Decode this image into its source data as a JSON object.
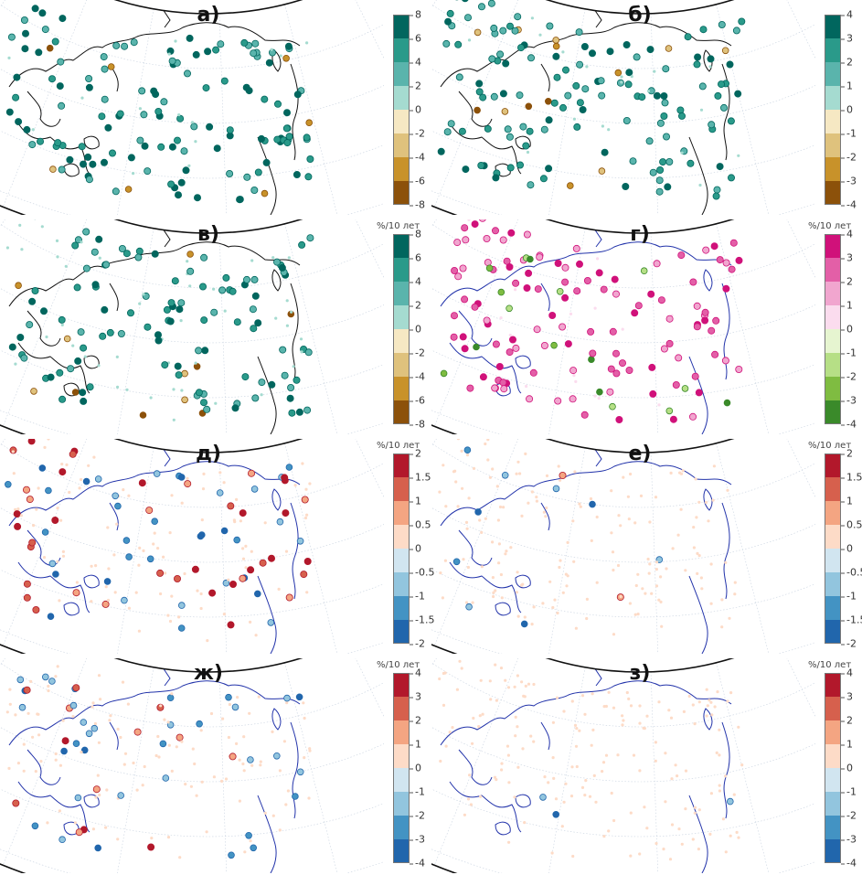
{
  "unit_label": "%/10 лет",
  "panels": [
    {
      "id": "a",
      "label": "а)",
      "scale": "green_brown",
      "ticks": [
        "8",
        "6",
        "4",
        "2",
        "0",
        "-2",
        "-4",
        "-6",
        "-8"
      ],
      "unit_shown": false,
      "coast": "#111111"
    },
    {
      "id": "b",
      "label": "б)",
      "scale": "green_brown",
      "ticks": [
        "4",
        "3",
        "2",
        "1",
        "0",
        "-1",
        "-2",
        "-3",
        "-4"
      ],
      "unit_shown": false,
      "coast": "#111111"
    },
    {
      "id": "v",
      "label": "в)",
      "scale": "green_brown",
      "ticks": [
        "8",
        "6",
        "4",
        "2",
        "0",
        "-2",
        "-4",
        "-6",
        "-8"
      ],
      "unit_shown": true,
      "coast": "#111111"
    },
    {
      "id": "g",
      "label": "г)",
      "scale": "pink_green",
      "ticks": [
        "4",
        "3",
        "2",
        "1",
        "0",
        "-1",
        "-2",
        "-3",
        "-4"
      ],
      "unit_shown": true,
      "coast": "#2233aa"
    },
    {
      "id": "d",
      "label": "д)",
      "scale": "red_blue",
      "ticks": [
        "2",
        "1.5",
        "1",
        "0.5",
        "0",
        "-0.5",
        "-1",
        "-1.5",
        "-2"
      ],
      "unit_shown": true,
      "coast": "#2233aa"
    },
    {
      "id": "e",
      "label": "е)",
      "scale": "red_blue",
      "ticks": [
        "2",
        "1.5",
        "1",
        "0.5",
        "0",
        "-0.5",
        "-1",
        "-1.5",
        "-2"
      ],
      "unit_shown": true,
      "coast": "#2233aa"
    },
    {
      "id": "zh",
      "label": "ж)",
      "scale": "red_blue",
      "ticks": [
        "4",
        "3",
        "2",
        "1",
        "0",
        "-1",
        "-2",
        "-3",
        "-4"
      ],
      "unit_shown": true,
      "coast": "#2233aa"
    },
    {
      "id": "z",
      "label": "з)",
      "scale": "red_blue",
      "ticks": [
        "4",
        "3",
        "2",
        "1",
        "0",
        "-1",
        "-2",
        "-3",
        "-4"
      ],
      "unit_shown": true,
      "coast": "#2233aa"
    }
  ],
  "colors": {
    "green_brown": [
      "#01665e",
      "#2a9a8a",
      "#5ab4ac",
      "#a5dbd0",
      "#f6e8c3",
      "#dfc27d",
      "#c8922a",
      "#8c510a"
    ],
    "pink_green": [
      "#d0117a",
      "#e35fa7",
      "#f1a6cf",
      "#fbdcee",
      "#e6f5d0",
      "#b6df86",
      "#7fbc41",
      "#3a8a2a"
    ],
    "red_blue": [
      "#b2182b",
      "#d6604d",
      "#f4a582",
      "#fddbc7",
      "#d1e5f0",
      "#92c5de",
      "#4393c3",
      "#2166ac"
    ]
  },
  "station_patterns": {
    "a": {
      "strong_pos": 0.82,
      "neg": 0.08
    },
    "b": {
      "strong_pos": 0.8,
      "neg": 0.07
    },
    "v": {
      "strong_pos": 0.62,
      "neg": 0.05
    },
    "g": {
      "strong_pos": 0.7,
      "neg": 0.12
    },
    "d": {
      "strong_pos": 0.22,
      "neg": 0.18
    },
    "e": {
      "strong_pos": 0.01,
      "neg": 0.03
    },
    "zh": {
      "strong_pos": 0.05,
      "neg": 0.2
    },
    "z": {
      "strong_pos": 0.0,
      "neg": 0.01
    }
  }
}
